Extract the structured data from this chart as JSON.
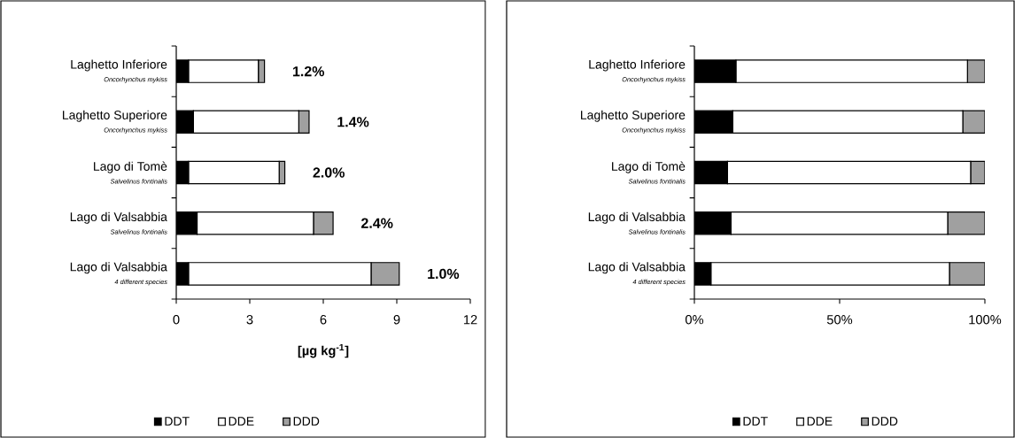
{
  "chart_data": [
    {
      "type": "bar",
      "orientation": "horizontal",
      "stacked": true,
      "xlabel": "[µg kg$^{-1}$]",
      "categories": [
        "Laghetto Inferiore *Oncorhynchus mykiss*",
        "Laghetto Superiore *Oncorhynchus mykiss*",
        "Lago di Tomè *Salvelinus fontinalis*",
        "Lago di Valsabbia *Salvelinus fontinalis*",
        "Lago di Valsabbia *4 different species*"
      ],
      "series": [
        {
          "name": "DDT",
          "color": "#000000",
          "values": [
            0.5,
            0.7,
            0.5,
            0.85,
            0.5
          ]
        },
        {
          "name": "DDE",
          "color": "#ffffff",
          "values": [
            2.85,
            4.3,
            3.7,
            4.75,
            7.45
          ]
        },
        {
          "name": "DDD",
          "color": "#a0a0a0",
          "values": [
            0.25,
            0.42,
            0.23,
            0.8,
            1.15
          ]
        }
      ],
      "xlim": [
        0,
        12
      ],
      "xticks": [
        0,
        3,
        6,
        9,
        12
      ],
      "annotations": [
        "1.2%",
        "1.4%",
        "2.0%",
        "2.4%",
        "1.0%"
      ],
      "legend": "bottom"
    },
    {
      "type": "bar",
      "orientation": "horizontal",
      "stacked": true,
      "categories": [
        "Laghetto Inferiore *Oncorhynchus mykiss*",
        "Laghetto Superiore *Oncorhynchus mykiss*",
        "Lago di Tomè *Salvelinus fontinalis*",
        "Lago di Valsabbia *Salvelinus fontinalis*",
        "Lago di Valsabbia *4 different species*"
      ],
      "series": [
        {
          "name": "DDT",
          "color": "#000000",
          "values": [
            14.3,
            13.2,
            11.4,
            12.6,
            5.7
          ]
        },
        {
          "name": "DDE",
          "color": "#ffffff",
          "values": [
            79.7,
            79.2,
            83.7,
            74.6,
            82.1
          ]
        },
        {
          "name": "DDD",
          "color": "#a0a0a0",
          "values": [
            6.0,
            7.6,
            4.9,
            12.8,
            12.2
          ]
        }
      ],
      "xlim": [
        0,
        100
      ],
      "xticks": [
        {
          "value": 0,
          "label": "0%"
        },
        {
          "value": 50,
          "label": "50%"
        },
        {
          "value": 100,
          "label": "100%"
        }
      ],
      "legend": "bottom"
    }
  ]
}
